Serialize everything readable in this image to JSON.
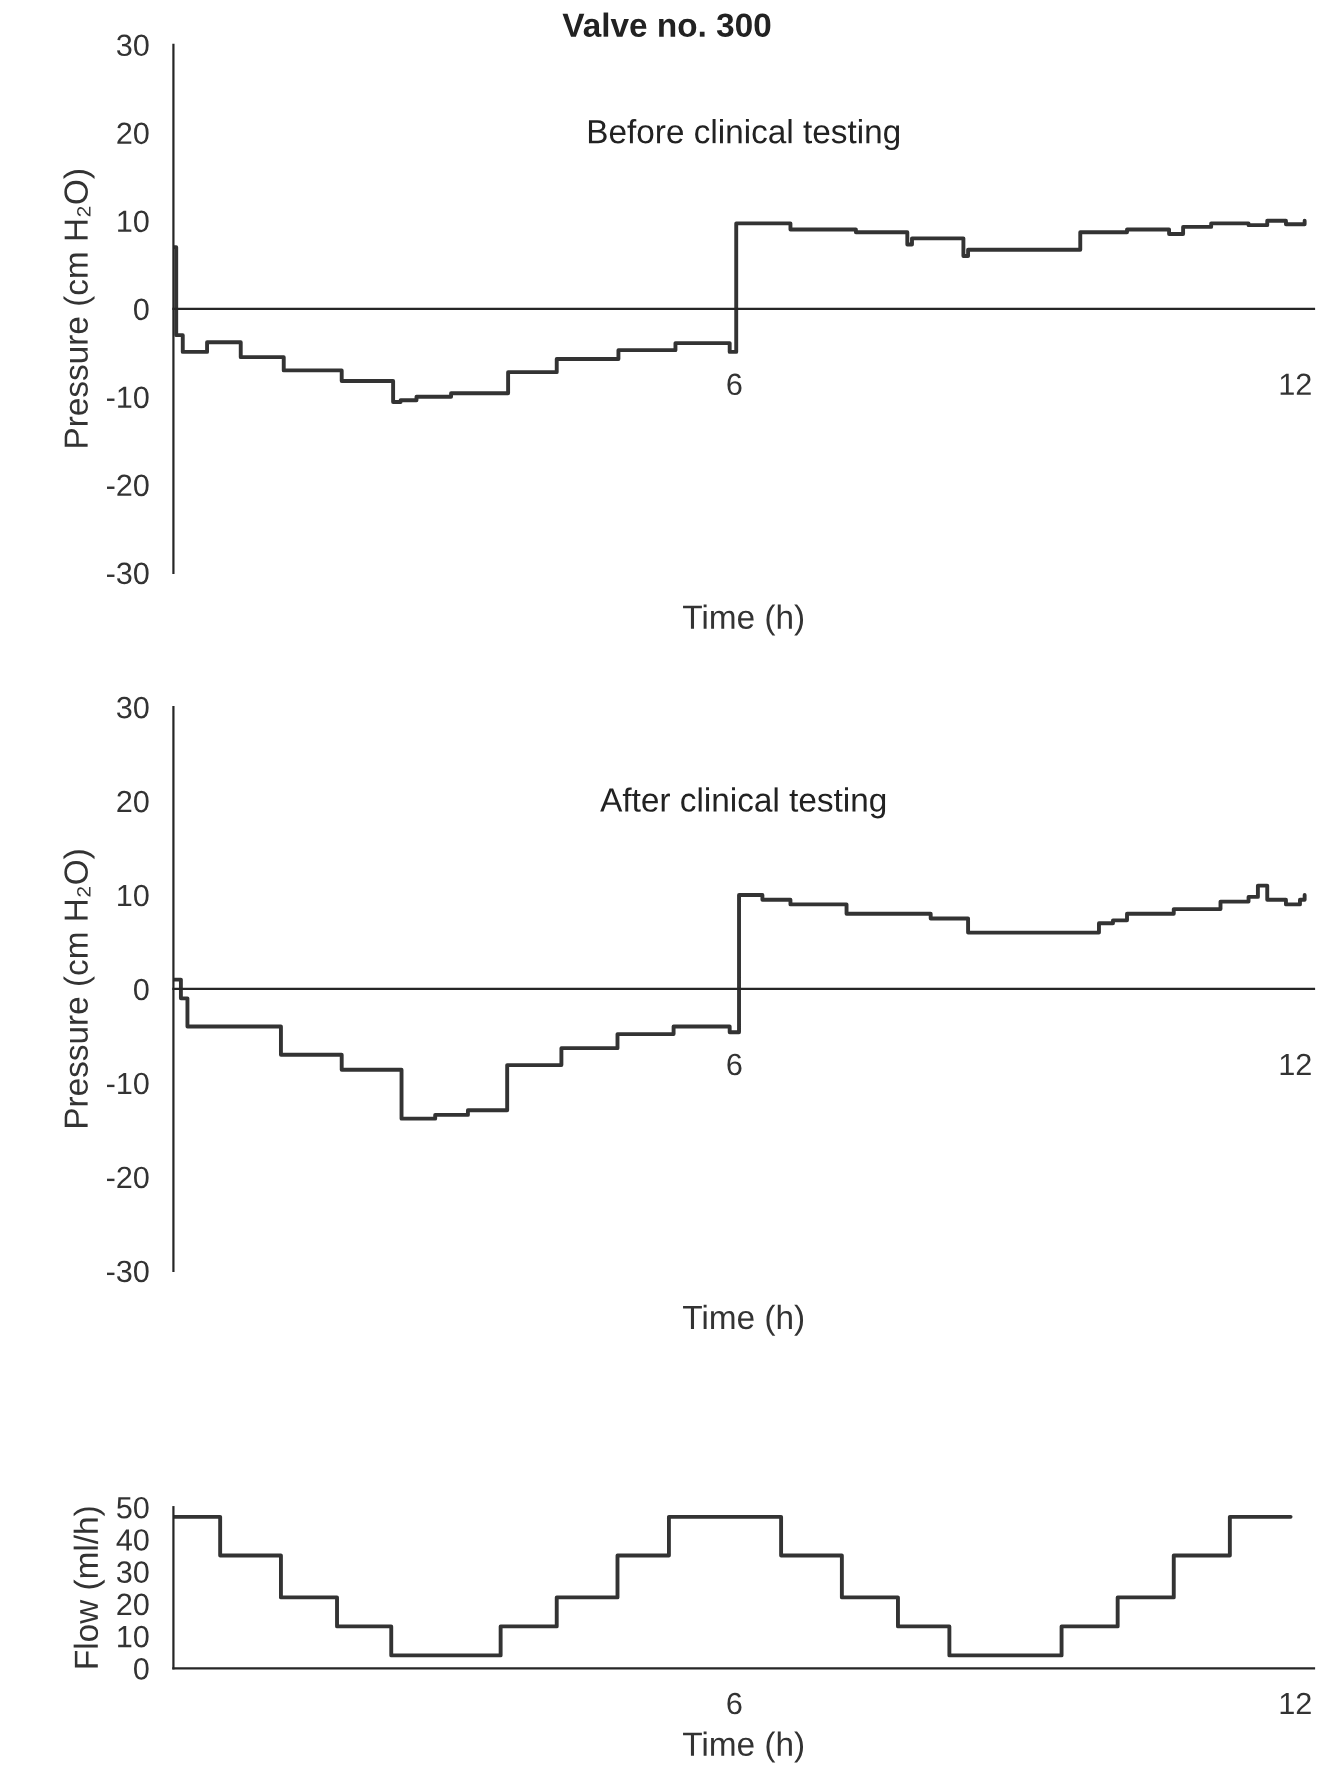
{
  "chart_data": [
    {
      "type": "step",
      "title": "Valve no. 300",
      "subtitle": "Before clinical testing",
      "xlabel": "Time (h)",
      "ylabel": "Pressure (cm H₂O)",
      "xlim": [
        0,
        12.2
      ],
      "xticks": [
        6,
        12
      ],
      "ylim": [
        -30,
        30
      ],
      "yticks": [
        -30,
        -20,
        -10,
        0,
        10,
        20,
        30
      ],
      "grid": false,
      "legend": false,
      "series": [
        {
          "color": "#333333",
          "x": [
            0,
            0.03,
            0.1,
            0.36,
            0.6,
            0.72,
            1.18,
            1.8,
            2.35,
            2.43,
            2.6,
            2.97,
            3.58,
            4.1,
            4.25,
            4.76,
            5.37,
            5.95,
            6.0,
            6.02,
            6.6,
            7.3,
            7.85,
            7.9,
            8.45,
            8.5,
            9.7,
            10.2,
            10.65,
            10.8,
            11.1,
            11.5,
            11.7,
            11.9,
            12.1
          ],
          "values": [
            7,
            -3,
            -4.9,
            -3.8,
            -3.8,
            -5.5,
            -7,
            -8.2,
            -10.6,
            -10.4,
            -10,
            -9.6,
            -7.2,
            -5.7,
            -5.7,
            -4.7,
            -3.9,
            -4.9,
            -4.9,
            9.7,
            9.0,
            8.7,
            7.3,
            8.0,
            6.0,
            6.7,
            8.7,
            9.0,
            8.5,
            9.3,
            9.7,
            9.5,
            10.0,
            9.6,
            10.0
          ]
        }
      ]
    },
    {
      "type": "step",
      "subtitle": "After clinical testing",
      "xlabel": "Time (h)",
      "ylabel": "Pressure (cm H₂O)",
      "xlim": [
        0,
        12.2
      ],
      "xticks": [
        6,
        12
      ],
      "ylim": [
        -30,
        30
      ],
      "yticks": [
        -30,
        -20,
        -10,
        0,
        10,
        20,
        30
      ],
      "grid": false,
      "legend": false,
      "series": [
        {
          "color": "#333333",
          "x": [
            0,
            0.08,
            0.15,
            1.15,
            1.8,
            2.44,
            2.8,
            3.15,
            3.57,
            4.15,
            4.75,
            5.35,
            5.95,
            6.03,
            6.05,
            6.3,
            6.6,
            7.2,
            8.1,
            8.5,
            9.9,
            10.05,
            10.2,
            10.7,
            11.2,
            11.5,
            11.6,
            11.7,
            11.9,
            12.05,
            12.1
          ],
          "values": [
            1,
            -1,
            -4,
            -7,
            -8.6,
            -13.8,
            -13.4,
            -12.9,
            -8.1,
            -6.3,
            -4.8,
            -4,
            -4.6,
            -4.6,
            10,
            9.5,
            9,
            8,
            7.5,
            6,
            7,
            7.3,
            8,
            8.5,
            9.3,
            9.8,
            11,
            9.5,
            9,
            9.5,
            10
          ]
        }
      ]
    },
    {
      "type": "step",
      "xlabel": "Time (h)",
      "ylabel": "Flow (ml/h)",
      "xlim": [
        0,
        12.2
      ],
      "xticks": [
        6,
        12
      ],
      "ylim": [
        0,
        50
      ],
      "yticks": [
        0,
        10,
        20,
        30,
        40,
        50
      ],
      "grid": false,
      "legend": false,
      "series": [
        {
          "color": "#333333",
          "x": [
            0,
            0.5,
            1.15,
            1.75,
            2.33,
            3.5,
            4.1,
            4.75,
            5.3,
            6.5,
            7.15,
            7.75,
            8.3,
            9.5,
            10.1,
            10.7,
            11.3,
            11.95
          ],
          "values": [
            47,
            35,
            22,
            13,
            4,
            13,
            22,
            35,
            47,
            35,
            22,
            13,
            4,
            13,
            22,
            35,
            47,
            47
          ]
        }
      ]
    }
  ]
}
